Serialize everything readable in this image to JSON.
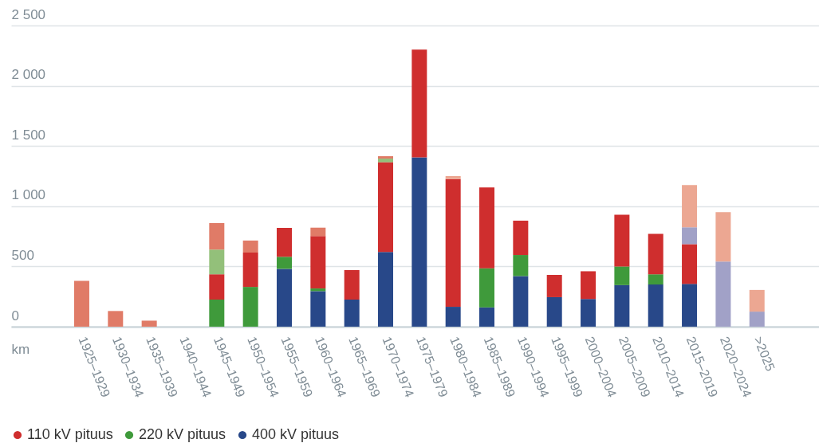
{
  "chart_data": {
    "type": "bar",
    "stacked": true,
    "ylabel": "km",
    "categories": [
      "1925–1929",
      "1930–1934",
      "1935–1939",
      "1940–1944",
      "1945–1949",
      "1950–1954",
      "1955–1959",
      "1960–1964",
      "1965–1969",
      "1970–1974",
      "1975–1979",
      "1980–1984",
      "1985–1989",
      "1990–1994",
      "1995–1999",
      "2000–2004",
      "2005–2009",
      "2010–2014",
      "2015–2019",
      "2020–2024",
      ">2025"
    ],
    "series": [
      {
        "name": "400 kV pituus",
        "color": "#284889",
        "values": [
          null,
          null,
          null,
          null,
          null,
          null,
          480,
          295,
          225,
          620,
          1405,
          165,
          160,
          420,
          245,
          230,
          345,
          350,
          355,
          null,
          null
        ]
      },
      {
        "name": "220 kV pituus",
        "color": "#3f9a3b",
        "values": [
          null,
          null,
          null,
          null,
          225,
          330,
          100,
          22,
          null,
          null,
          null,
          null,
          325,
          175,
          null,
          null,
          155,
          85,
          null,
          null,
          null
        ]
      },
      {
        "name": "110 kV pituus",
        "color": "#cf2e2e",
        "values": [
          null,
          null,
          null,
          null,
          210,
          285,
          240,
          435,
          245,
          745,
          895,
          1060,
          670,
          285,
          185,
          230,
          430,
          335,
          330,
          null,
          null
        ]
      },
      {
        "color": "#a1a1c7",
        "values": [
          null,
          null,
          null,
          null,
          null,
          null,
          null,
          null,
          null,
          null,
          null,
          null,
          null,
          null,
          null,
          null,
          null,
          null,
          140,
          540,
          125
        ]
      },
      {
        "color": "#93c07a",
        "values": [
          null,
          null,
          null,
          null,
          205,
          null,
          null,
          null,
          null,
          30,
          null,
          null,
          null,
          null,
          null,
          null,
          null,
          null,
          null,
          null,
          null
        ]
      },
      {
        "color": "#e07b67",
        "values": [
          380,
          130,
          50,
          null,
          220,
          100,
          null,
          70,
          null,
          20,
          null,
          null,
          null,
          null,
          null,
          null,
          null,
          null,
          null,
          null,
          null
        ]
      },
      {
        "color": "#eca792",
        "values": [
          null,
          null,
          null,
          null,
          null,
          null,
          null,
          null,
          null,
          null,
          null,
          25,
          null,
          null,
          null,
          null,
          null,
          null,
          350,
          410,
          180
        ]
      }
    ],
    "ylim": [
      0,
      2500
    ],
    "yticks": [
      0,
      500,
      {
        "value": 1000,
        "label": "1 000"
      },
      {
        "value": 1500,
        "label": "1 500"
      },
      {
        "value": 2000,
        "label": "2 000"
      },
      {
        "value": 2500,
        "label": "2 500"
      }
    ],
    "grid": "y",
    "legend": "bottom left"
  }
}
